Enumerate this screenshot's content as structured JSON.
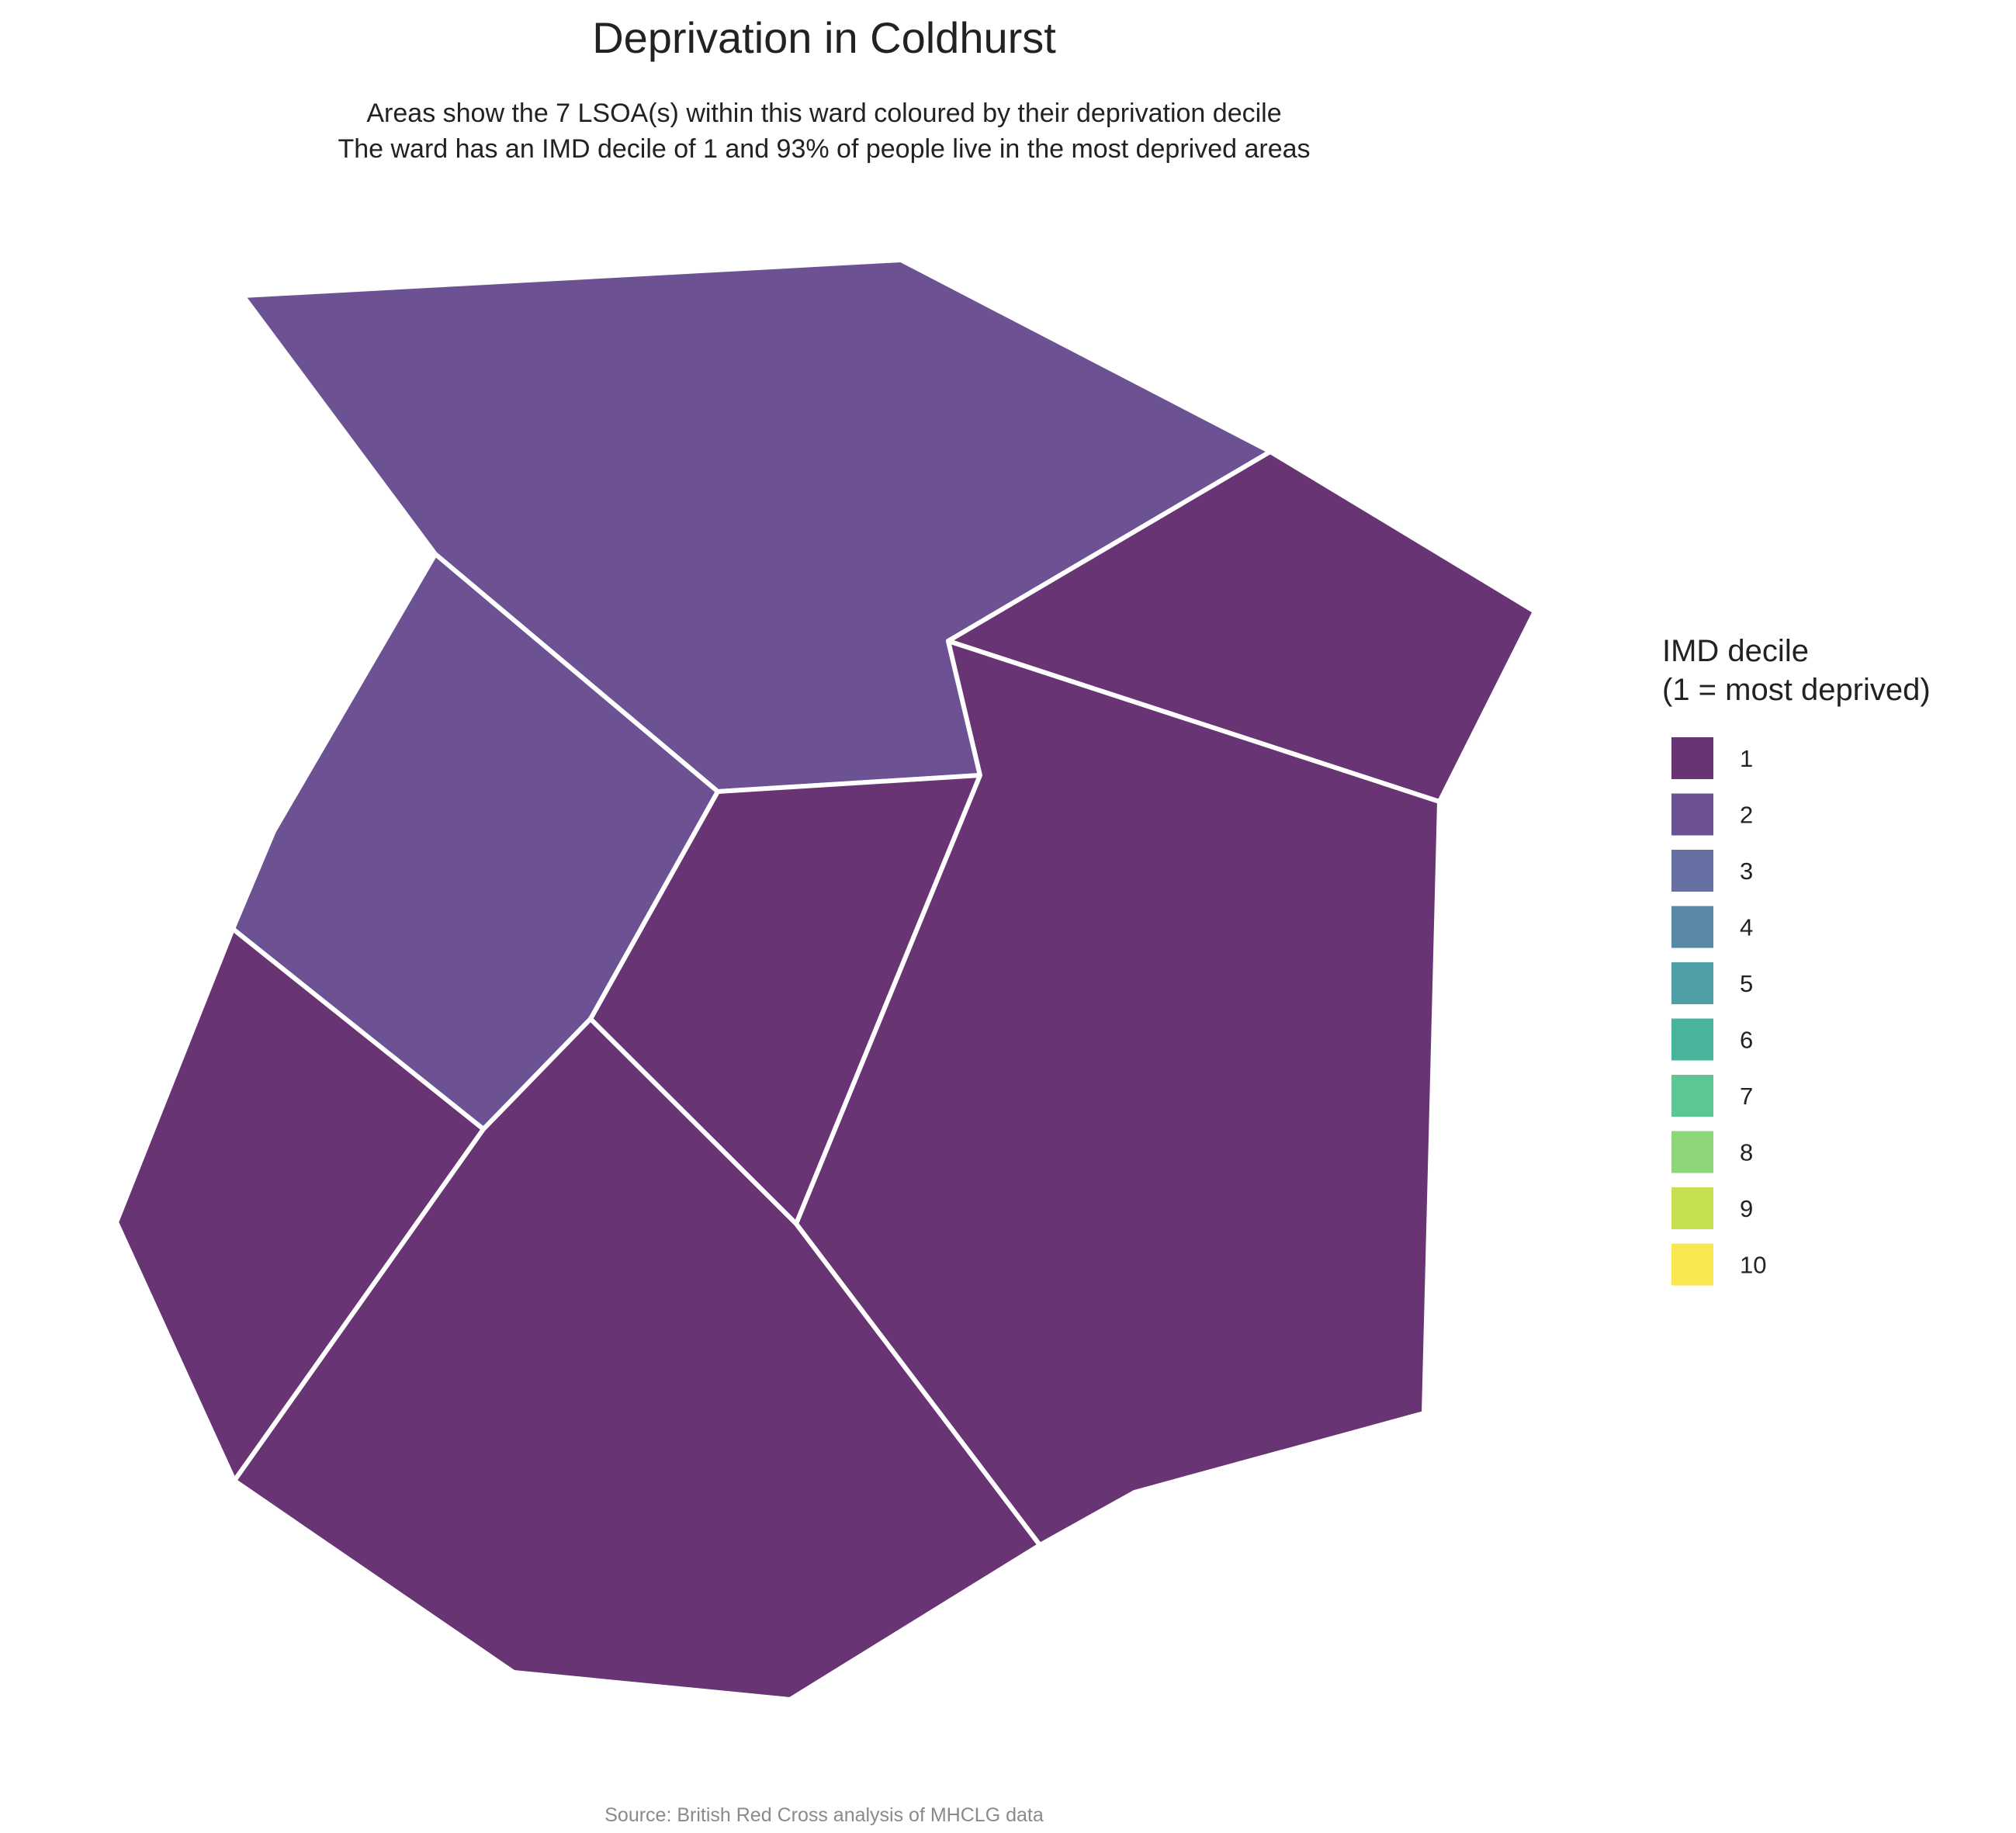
{
  "title": "Deprivation in Coldhurst",
  "subtitle_line1": "Areas show the 7 LSOA(s) within this ward coloured by their deprivation decile",
  "subtitle_line2": "The ward has an IMD decile of 1 and 93% of people live in the most deprived areas",
  "caption": "Source: British Red Cross analysis of MHCLG data",
  "legend": {
    "title_line1": "IMD decile",
    "title_line2": "(1 = most deprived)",
    "items": [
      {
        "label": "1",
        "color": "#683474"
      },
      {
        "label": "2",
        "color": "#6c5292"
      },
      {
        "label": "3",
        "color": "#6770a2"
      },
      {
        "label": "4",
        "color": "#5a89a8"
      },
      {
        "label": "5",
        "color": "#4e9ea8"
      },
      {
        "label": "6",
        "color": "#4ab39d"
      },
      {
        "label": "7",
        "color": "#5ec692"
      },
      {
        "label": "8",
        "color": "#8fd579"
      },
      {
        "label": "9",
        "color": "#c5e051"
      },
      {
        "label": "10",
        "color": "#fbe74f"
      }
    ]
  },
  "map": {
    "areas": [
      {
        "name": "lsoa-north",
        "decile": 2
      },
      {
        "name": "lsoa-northeast",
        "decile": 1
      },
      {
        "name": "lsoa-west",
        "decile": 2
      },
      {
        "name": "lsoa-central",
        "decile": 1
      },
      {
        "name": "lsoa-east",
        "decile": 1
      },
      {
        "name": "lsoa-southwest",
        "decile": 1
      },
      {
        "name": "lsoa-south",
        "decile": 1
      }
    ]
  }
}
